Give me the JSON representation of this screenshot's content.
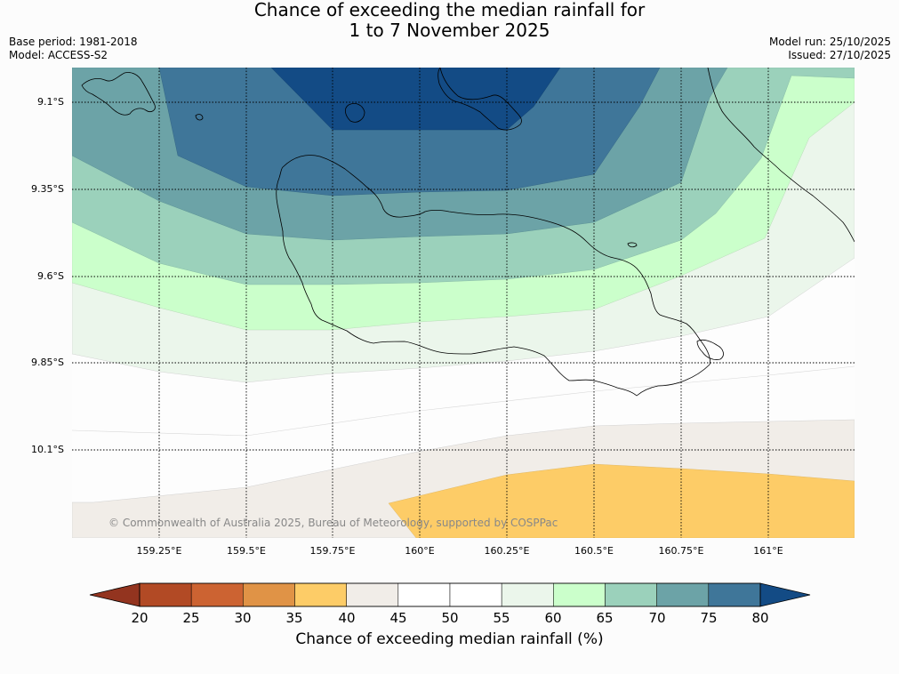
{
  "title": {
    "line1": "Chance of exceeding the median rainfall for",
    "line2": "1 to 7 November 2025"
  },
  "meta_left": {
    "base_period": "Base period: 1981-2018",
    "model": "Model: ACCESS-S2"
  },
  "meta_right": {
    "model_run": "Model run: 25/10/2025",
    "issued": "Issued: 27/10/2025"
  },
  "map": {
    "lat_labels": [
      "9.1°S",
      "9.35°S",
      "9.6°S",
      "9.85°S",
      "10.1°S"
    ],
    "lon_labels": [
      "159.25°E",
      "159.5°E",
      "159.75°E",
      "160°E",
      "160.25°E",
      "160.5°E",
      "160.75°E",
      "161°E"
    ],
    "credit": "© Commonwealth of Australia 2025, Bureau of Meteorology, supported by COSPPac"
  },
  "colorbar": {
    "title": "Chance of exceeding median rainfall (%)",
    "ticks": [
      "20",
      "25",
      "30",
      "35",
      "40",
      "45",
      "50",
      "55",
      "60",
      "65",
      "70",
      "75",
      "80"
    ],
    "colors": {
      "under": "#93341f",
      "bins": [
        "#b24a25",
        "#cc6332",
        "#e09346",
        "#fdcc67",
        "#f1ede8",
        "#ffffff",
        "#ffffff",
        "#ebf6eb",
        "#cbffcb",
        "#9bd1bb",
        "#6ca3a7",
        "#3f7699"
      ],
      "over": "#134b85"
    }
  }
}
